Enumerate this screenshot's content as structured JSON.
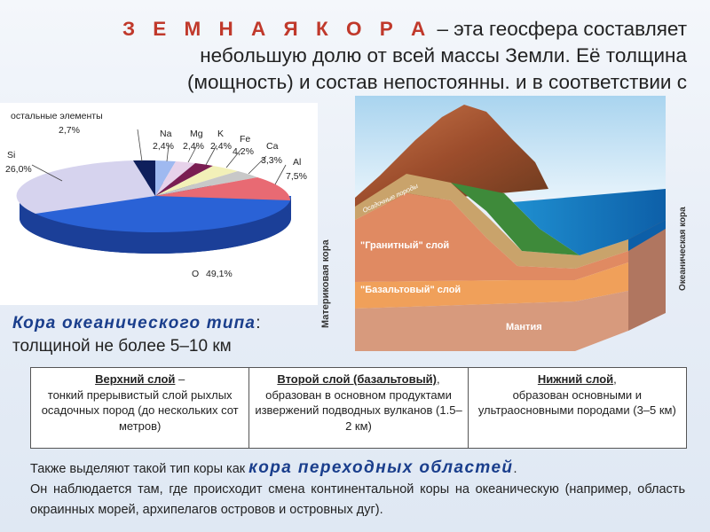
{
  "title": {
    "heading": "З Е М Н А Я  К О Р А",
    "text_line1": " – эта геосфера составляет",
    "text_line2": "небольшую долю от всей массы Земли. Её толщина",
    "text_line3": "(мощность) и состав непостоянны. и в соответствии с"
  },
  "pie": {
    "slices": [
      {
        "name": "O",
        "value": "49,1%",
        "color": "#2255c4"
      },
      {
        "name": "Si",
        "value": "26,0%",
        "color": "#d6d3ee"
      },
      {
        "name": "Al",
        "value": "7,5%",
        "color": "#e86a73"
      },
      {
        "name": "Ca",
        "value": "3,3%",
        "color": "#c8c8c8"
      },
      {
        "name": "Fe",
        "value": "4,2%",
        "color": "#f2f0b8"
      },
      {
        "name": "K",
        "value": "2,4%",
        "color": "#7a1d52"
      },
      {
        "name": "Mg",
        "value": "2,4%",
        "color": "#e7d2ea"
      },
      {
        "name": "Na",
        "value": "2,4%",
        "color": "#9fb9f0"
      },
      {
        "name": "остальные элементы",
        "value": "2,7%",
        "color": "#0f1f5c"
      }
    ]
  },
  "diagram": {
    "continental_label": "Материковая кора",
    "oceanic_label": "Океаническая кора",
    "sediment_label": "Осадочные породы",
    "granite_label": "\"Гранитный\" слой",
    "basalt_label": "\"Базальтовый\" слой",
    "mantle_label": "Мантия"
  },
  "oceanic_type": {
    "heading": "Кора океанического типа",
    "colon": ":",
    "thickness": "толщиной не более 5–10 км"
  },
  "layers": [
    {
      "head": "Верхний слой",
      "tail": " –",
      "body": "тонкий прерывистый слой рыхлых осадочных пород (до нескольких сот метров)"
    },
    {
      "head": "Второй слой (базальтовый)",
      "tail": ",",
      "body": "образован в основном продуктами извержений подводных вулканов (1.5–2 км)"
    },
    {
      "head": "Нижний слой",
      "tail": ",",
      "body": "образован основными и ультраосновными породами (3–5 км)"
    }
  ],
  "footer": {
    "prefix": "Также выделяют такой тип коры как ",
    "highlight": "кора переходных областей",
    "dot": ".",
    "rest": "Он наблюдается там, где происходит смена континентальной коры на океаническую (например, область окраинных морей, архипелагов островов и островных дуг)."
  }
}
